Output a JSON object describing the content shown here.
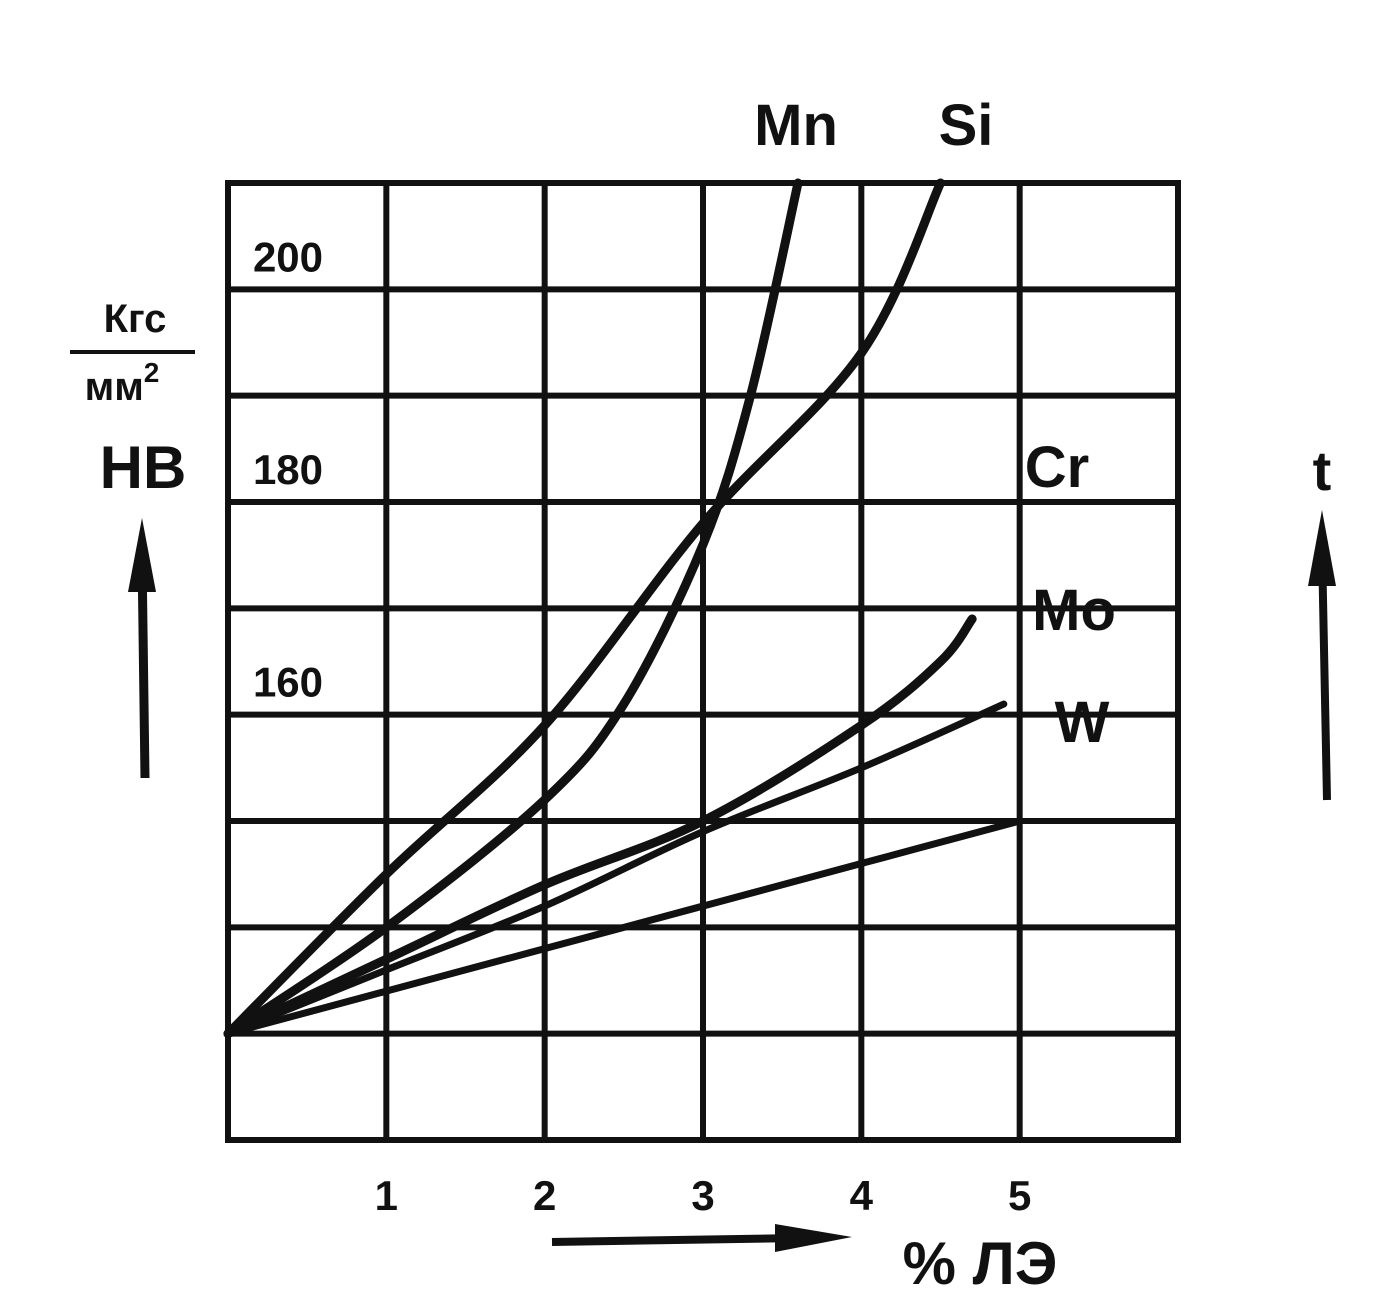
{
  "chart_data": {
    "type": "line",
    "title": "",
    "xlabel": "% ЛЭ",
    "ylabel": "НВ",
    "ylabel_unit_numerator": "Кгс",
    "ylabel_unit_denominator": "мм",
    "ylabel_unit_exponent": "2",
    "right_label": "t",
    "xlim": [
      0,
      6
    ],
    "ylim": [
      120,
      210
    ],
    "x_ticks": [
      "1",
      "2",
      "3",
      "4",
      "5"
    ],
    "y_ticks": [
      {
        "value": 200,
        "label": "200"
      },
      {
        "value": 180,
        "label": "180"
      },
      {
        "value": 160,
        "label": "160"
      }
    ],
    "grid": true,
    "series": [
      {
        "name": "Mn",
        "x": [
          0,
          1,
          2,
          2.5,
          3,
          3.3,
          3.6
        ],
        "y": [
          130,
          140,
          152,
          161,
          176,
          190,
          210
        ]
      },
      {
        "name": "Si",
        "x": [
          0,
          1,
          2,
          3,
          4,
          4.5
        ],
        "y": [
          130,
          145,
          159,
          178,
          194,
          210
        ]
      },
      {
        "name": "Cr",
        "x": [
          0,
          1,
          2,
          3,
          4,
          4.5,
          4.7
        ],
        "y": [
          130,
          137,
          144,
          150,
          159,
          165,
          169
        ]
      },
      {
        "name": "Mo",
        "x": [
          0,
          1,
          2,
          3,
          4,
          4.9
        ],
        "y": [
          130,
          136,
          142,
          149,
          155,
          161
        ]
      },
      {
        "name": "W",
        "x": [
          0,
          1,
          2,
          3,
          4,
          5
        ],
        "y": [
          130,
          134,
          138,
          142,
          146,
          150
        ]
      }
    ]
  }
}
